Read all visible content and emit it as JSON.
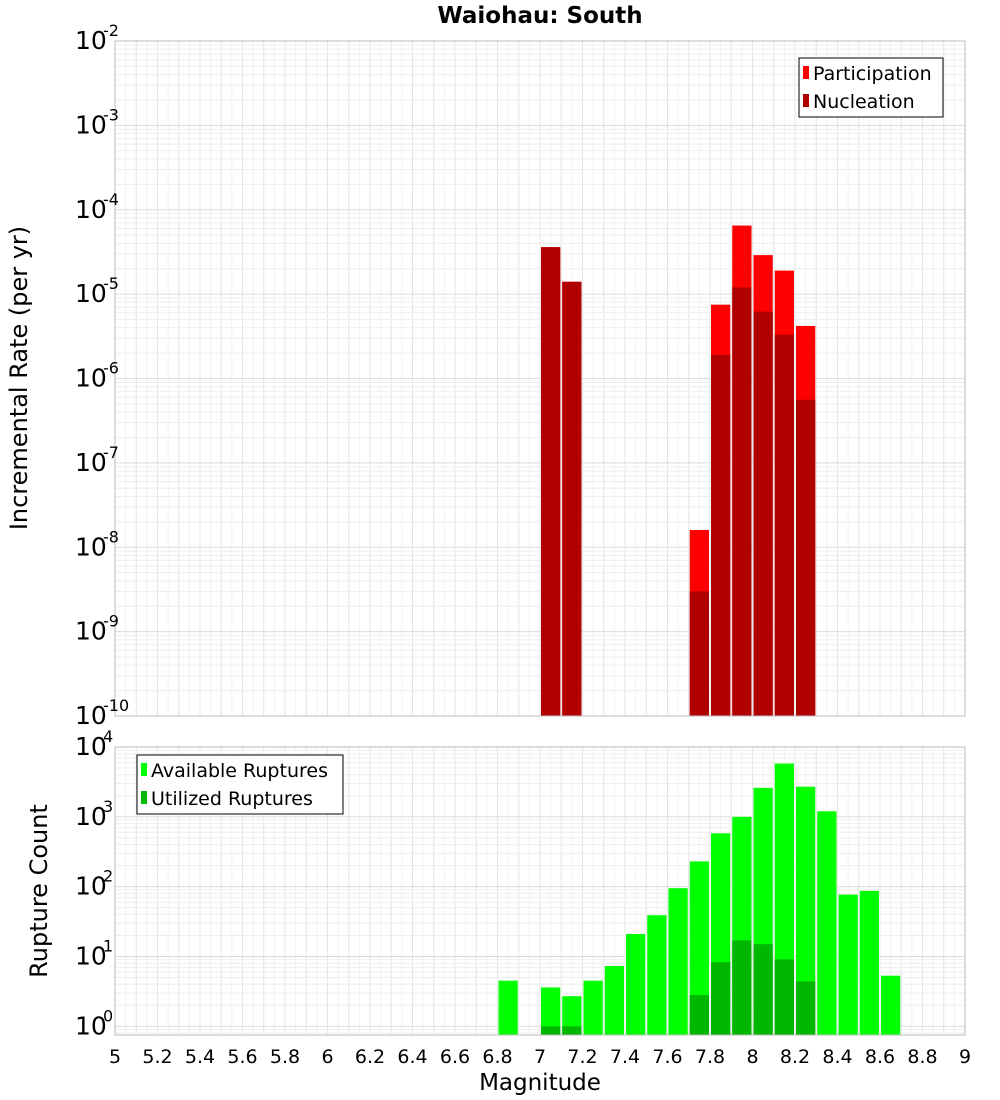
{
  "chart_data": [
    {
      "type": "bar",
      "title": "Waiohau: South",
      "ylabel": "Incremental Rate (per yr)",
      "xlabel": "",
      "x_range": [
        5,
        9
      ],
      "y_scale": "log",
      "ylim": [
        1e-10,
        0.01
      ],
      "y_tick_exponents": [
        -10,
        -9,
        -8,
        -7,
        -6,
        -5,
        -4,
        -3,
        -2
      ],
      "legend_position": "top-right",
      "grid": true,
      "bin_width": 0.1,
      "series": [
        {
          "name": "Participation",
          "color": "#ff0000",
          "x": [
            7.05,
            7.15,
            7.75,
            7.85,
            7.95,
            8.05,
            8.15,
            8.25
          ],
          "values": [
            3.6e-05,
            1.4e-05,
            1.6e-08,
            7.5e-06,
            6.5e-05,
            2.9e-05,
            1.9e-05,
            4.2e-06
          ]
        },
        {
          "name": "Nucleation",
          "color": "#b00000",
          "x": [
            7.05,
            7.15,
            7.75,
            7.85,
            7.95,
            8.05,
            8.15,
            8.25
          ],
          "values": [
            3.6e-05,
            1.4e-05,
            3e-09,
            1.9e-06,
            1.2e-05,
            6.2e-06,
            3.3e-06,
            5.6e-07
          ]
        }
      ]
    },
    {
      "type": "bar",
      "title": "",
      "ylabel": "Rupture Count",
      "xlabel": "Magnitude",
      "x_range": [
        5,
        9
      ],
      "x_ticks": [
        "5",
        "5.2",
        "5.4",
        "5.6",
        "5.8",
        "6",
        "6.2",
        "6.4",
        "6.6",
        "6.8",
        "7",
        "7.2",
        "7.4",
        "7.6",
        "7.8",
        "8",
        "8.2",
        "8.4",
        "8.6",
        "8.8",
        "9"
      ],
      "y_scale": "log",
      "ylim": [
        0.75,
        10000
      ],
      "y_tick_exponents": [
        0,
        1,
        2,
        3,
        4
      ],
      "legend_position": "top-left",
      "grid": true,
      "bin_width": 0.1,
      "series": [
        {
          "name": "Available Ruptures",
          "color": "#00ff00",
          "x": [
            6.85,
            7.05,
            7.15,
            7.25,
            7.35,
            7.45,
            7.55,
            7.65,
            7.75,
            7.85,
            7.95,
            8.05,
            8.15,
            8.25,
            8.35,
            8.45,
            8.55,
            8.65
          ],
          "values": [
            4.5,
            3.6,
            2.7,
            4.5,
            7.3,
            21,
            39,
            95,
            230,
            580,
            1000,
            2600,
            5800,
            2700,
            1200,
            77,
            87,
            5.3
          ]
        },
        {
          "name": "Utilized Ruptures",
          "color": "#00b700",
          "x": [
            7.05,
            7.15,
            7.75,
            7.85,
            7.95,
            8.05,
            8.15,
            8.25
          ],
          "values": [
            1,
            1,
            2.8,
            8.3,
            17,
            15,
            9.1,
            4.4
          ]
        }
      ]
    }
  ]
}
